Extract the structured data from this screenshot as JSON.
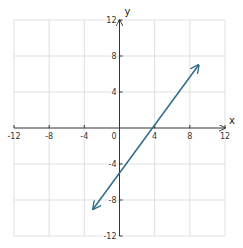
{
  "chart_data": {
    "type": "line",
    "x": [
      -3,
      9
    ],
    "values": [
      -9,
      7
    ],
    "color": "#2E6B8A",
    "marker": "arrow",
    "xlabel": "x",
    "ylabel": "y",
    "xlim": [
      -12,
      12
    ],
    "ylim": [
      -12,
      12
    ],
    "xticks": [
      -12,
      -8,
      -4,
      0,
      4,
      8,
      12
    ],
    "yticks": [
      -12,
      -8,
      -4,
      4,
      8,
      12
    ],
    "grid": true
  }
}
